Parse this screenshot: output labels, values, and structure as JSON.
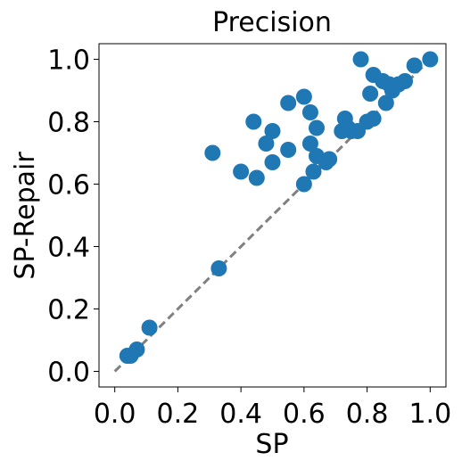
{
  "chart_data": {
    "type": "scatter",
    "title": "Precision",
    "xlabel": "SP",
    "ylabel": "SP-Repair",
    "xlim": [
      -0.05,
      1.05
    ],
    "ylim": [
      -0.05,
      1.05
    ],
    "xticks": [
      "0.0",
      "0.2",
      "0.4",
      "0.6",
      "0.8",
      "1.0"
    ],
    "yticks": [
      "0.0",
      "0.2",
      "0.4",
      "0.6",
      "0.8",
      "1.0"
    ],
    "grid": false,
    "reference_line": {
      "x": [
        0.0,
        1.0
      ],
      "y": [
        0.0,
        1.0
      ],
      "style": "dashed",
      "color": "#808080"
    },
    "series": [
      {
        "color": "#1f77b4",
        "points": [
          {
            "x": 0.04,
            "y": 0.05
          },
          {
            "x": 0.05,
            "y": 0.05
          },
          {
            "x": 0.07,
            "y": 0.07
          },
          {
            "x": 0.11,
            "y": 0.14
          },
          {
            "x": 0.33,
            "y": 0.33
          },
          {
            "x": 0.31,
            "y": 0.7
          },
          {
            "x": 0.4,
            "y": 0.64
          },
          {
            "x": 0.44,
            "y": 0.8
          },
          {
            "x": 0.45,
            "y": 0.62
          },
          {
            "x": 0.48,
            "y": 0.73
          },
          {
            "x": 0.5,
            "y": 0.77
          },
          {
            "x": 0.5,
            "y": 0.67
          },
          {
            "x": 0.55,
            "y": 0.86
          },
          {
            "x": 0.55,
            "y": 0.71
          },
          {
            "x": 0.6,
            "y": 0.88
          },
          {
            "x": 0.6,
            "y": 0.6
          },
          {
            "x": 0.62,
            "y": 0.83
          },
          {
            "x": 0.62,
            "y": 0.73
          },
          {
            "x": 0.63,
            "y": 0.64
          },
          {
            "x": 0.64,
            "y": 0.78
          },
          {
            "x": 0.64,
            "y": 0.69
          },
          {
            "x": 0.67,
            "y": 0.67
          },
          {
            "x": 0.68,
            "y": 0.68
          },
          {
            "x": 0.72,
            "y": 0.77
          },
          {
            "x": 0.73,
            "y": 0.81
          },
          {
            "x": 0.74,
            "y": 0.78
          },
          {
            "x": 0.75,
            "y": 0.77
          },
          {
            "x": 0.77,
            "y": 0.77
          },
          {
            "x": 0.78,
            "y": 1.0
          },
          {
            "x": 0.8,
            "y": 0.8
          },
          {
            "x": 0.81,
            "y": 0.89
          },
          {
            "x": 0.82,
            "y": 0.81
          },
          {
            "x": 0.82,
            "y": 0.95
          },
          {
            "x": 0.85,
            "y": 0.93
          },
          {
            "x": 0.86,
            "y": 0.86
          },
          {
            "x": 0.87,
            "y": 0.92
          },
          {
            "x": 0.88,
            "y": 0.9
          },
          {
            "x": 0.9,
            "y": 0.92
          },
          {
            "x": 0.92,
            "y": 0.93
          },
          {
            "x": 0.95,
            "y": 0.98
          },
          {
            "x": 1.0,
            "y": 1.0
          }
        ]
      }
    ]
  }
}
